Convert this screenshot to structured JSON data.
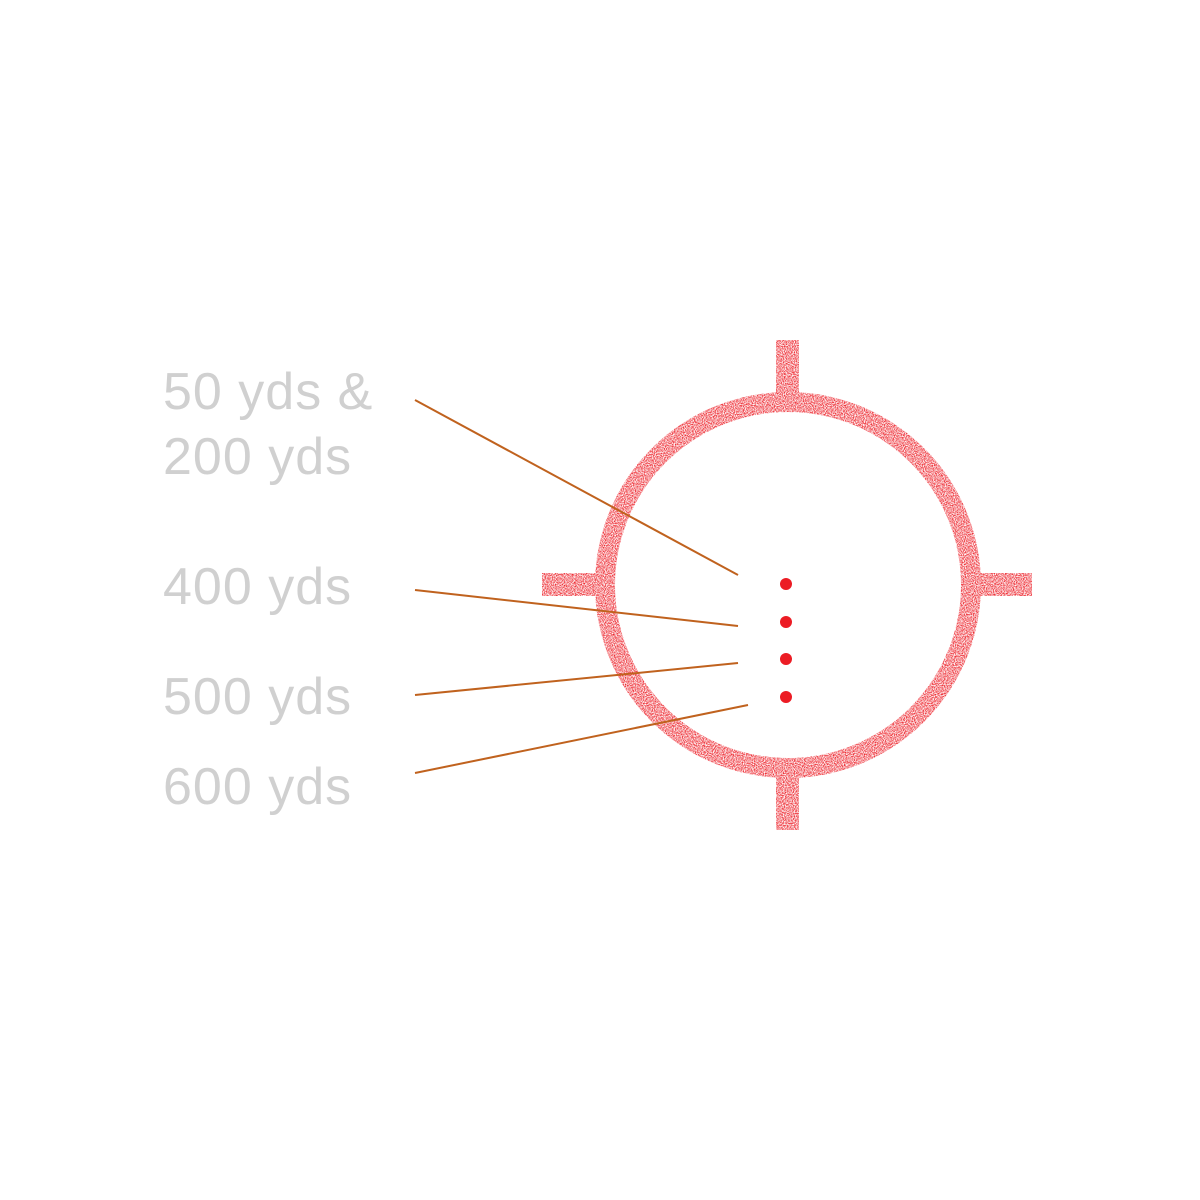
{
  "labels": {
    "line1a": "50 yds &",
    "line1b": "200 yds",
    "line2": "400 yds",
    "line3": "500 yds",
    "line4": "600 yds"
  },
  "reticle": {
    "dot_count": 4
  },
  "colors": {
    "reticle": "#ec1c24",
    "leader": "#c0621e",
    "label": "#d0d0d0"
  }
}
